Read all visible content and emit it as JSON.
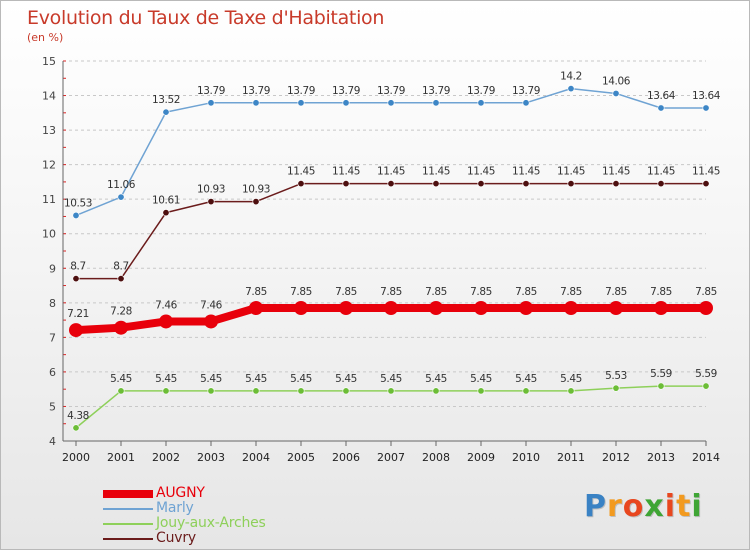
{
  "title": "Evolution du Taux de Taxe d'Habitation",
  "subtitle": "(en %)",
  "brand": {
    "text": "Proxiti",
    "letter_colors": [
      "#3a82c4",
      "#f29a1f",
      "#e8471f",
      "#3fa535",
      "#e8471f",
      "#f29a1f",
      "#3fa535"
    ]
  },
  "chart_data": {
    "type": "line",
    "title": "Evolution du Taux de Taxe d'Habitation",
    "subtitle": "(en %)",
    "x": [
      "2000",
      "2001",
      "2002",
      "2003",
      "2004",
      "2005",
      "2006",
      "2007",
      "2008",
      "2009",
      "2010",
      "2011",
      "2012",
      "2013",
      "2014"
    ],
    "ylim": [
      4,
      15
    ],
    "yticks": [
      "4",
      "5",
      "6",
      "7",
      "8",
      "9",
      "10",
      "11",
      "12",
      "13",
      "14",
      "15"
    ],
    "grid": "horizontal dashed",
    "legend_position": "bottom-left",
    "series": [
      {
        "name": "Marly",
        "color": "#6fa3d3",
        "marker": "#3d86c6",
        "values": [
          10.53,
          11.06,
          13.52,
          13.79,
          13.79,
          13.79,
          13.79,
          13.79,
          13.79,
          13.79,
          13.79,
          14.2,
          14.06,
          13.64,
          13.64
        ],
        "labels": [
          "10.53",
          "11.06",
          "13.52",
          "13.79",
          "13.79",
          "13.79",
          "13.79",
          "13.79",
          "13.79",
          "13.79",
          "13.79",
          "14.2",
          "14.06",
          "13.64",
          "13.64"
        ]
      },
      {
        "name": "Cuvry",
        "color": "#6b1c1c",
        "marker": "#4d0f0f",
        "values": [
          8.7,
          8.7,
          10.61,
          10.93,
          10.93,
          11.45,
          11.45,
          11.45,
          11.45,
          11.45,
          11.45,
          11.45,
          11.45,
          11.45,
          11.45
        ],
        "labels": [
          "8.7",
          "8.7",
          "10.61",
          "10.93",
          "10.93",
          "11.45",
          "11.45",
          "11.45",
          "11.45",
          "11.45",
          "11.45",
          "11.45",
          "11.45",
          "11.45",
          "11.45"
        ]
      },
      {
        "name": "AUGNY",
        "color": "#e8000b",
        "marker": "#e8000b",
        "bold": true,
        "values": [
          7.21,
          7.28,
          7.46,
          7.46,
          7.85,
          7.85,
          7.85,
          7.85,
          7.85,
          7.85,
          7.85,
          7.85,
          7.85,
          7.85,
          7.85
        ],
        "labels": [
          "7.21",
          "7.28",
          "7.46",
          "7.46",
          "7.85",
          "7.85",
          "7.85",
          "7.85",
          "7.85",
          "7.85",
          "7.85",
          "7.85",
          "7.85",
          "7.85",
          "7.85"
        ]
      },
      {
        "name": "Jouy-aux-Arches",
        "color": "#8ed05a",
        "marker": "#6cbd37",
        "values": [
          4.38,
          5.45,
          5.45,
          5.45,
          5.45,
          5.45,
          5.45,
          5.45,
          5.45,
          5.45,
          5.45,
          5.45,
          5.53,
          5.59,
          5.59
        ],
        "labels": [
          "4.38",
          "5.45",
          "5.45",
          "5.45",
          "5.45",
          "5.45",
          "5.45",
          "5.45",
          "5.45",
          "5.45",
          "5.45",
          "5.45",
          "5.53",
          "5.59",
          "5.59"
        ]
      }
    ],
    "legend": [
      {
        "name": "AUGNY",
        "color": "#e8000b",
        "bold": true
      },
      {
        "name": "Marly",
        "color": "#6fa3d3",
        "bold": false
      },
      {
        "name": "Jouy-aux-Arches",
        "color": "#8ed05a",
        "bold": false
      },
      {
        "name": "Cuvry",
        "color": "#6b1c1c",
        "bold": false
      }
    ]
  }
}
